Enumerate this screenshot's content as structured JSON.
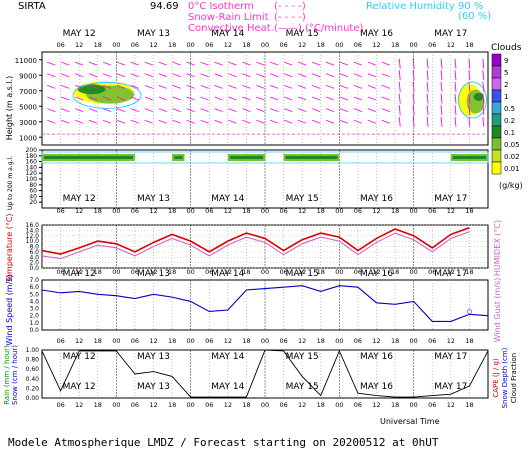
{
  "header": {
    "station": "SIRTA",
    "station_code": "94.69",
    "legend_left": [
      {
        "label": "0°C Isotherm",
        "sample": "(- - - -)"
      },
      {
        "label": "Snow-Rain Limit",
        "sample": "(- - - -)"
      },
      {
        "label": "Convective Heat.",
        "sample": "(——)  (°C/minute)"
      }
    ],
    "legend_right": [
      {
        "label": "Relative Humidity",
        "value": "90 %"
      },
      {
        "label": "",
        "value": "(60 %)"
      }
    ]
  },
  "days": [
    "MAY 12",
    "MAY 13",
    "MAY 14",
    "MAY 15",
    "MAY 16",
    "MAY 17"
  ],
  "hours": [
    "06",
    "12",
    "18",
    "00"
  ],
  "footer": {
    "caption": "Modele Atmospherique LMDZ / Forecast starting on 20200512 at 0hUT",
    "universal_time": "Universal Time"
  },
  "chart_data": [
    {
      "type": "heatmap",
      "panel": "clouds",
      "title": "Clouds",
      "ylabel": "Height (m a.s.l.)",
      "yticks": [
        1000,
        3000,
        5000,
        7000,
        9000,
        11000
      ],
      "colorbar": {
        "title": "Clouds",
        "unit": "(g/kg)",
        "labels": [
          "9",
          "5",
          "2",
          "1",
          "0.5",
          "0.2",
          "0.1",
          "0.05",
          "0.02",
          "0.01"
        ],
        "colors": [
          "#9900cc",
          "#b23ad9",
          "#cc66ee",
          "#3355ee",
          "#3aa6dd",
          "#1f9f77",
          "#1c8a1c",
          "#7cbf2e",
          "#c5de2a",
          "#ffff00"
        ]
      }
    },
    {
      "type": "heatmap",
      "panel": "low-levels",
      "ylabel": "Up to 200 m a.g.l.",
      "yticks": [
        20,
        40,
        60,
        80,
        100,
        120,
        140,
        160,
        180,
        200
      ]
    },
    {
      "type": "line",
      "panel": "temperature",
      "ylabel": "Temperature (°C)",
      "ylabel_right": "HUMIDEX (°C)",
      "yticks": [
        "0.0",
        "2.0",
        "4.0",
        "6.0",
        "8.0",
        "10.0",
        "12.0",
        "14.0",
        "16.0"
      ],
      "ylim": [
        0,
        16
      ],
      "x_hours": [
        0,
        6,
        12,
        18,
        24,
        30,
        36,
        42,
        48,
        54,
        60,
        66,
        72,
        78,
        84,
        90,
        96,
        102,
        108,
        114,
        120,
        126,
        132,
        138
      ],
      "series": [
        {
          "name": "Temperature",
          "color": "#dd0000",
          "values": [
            6.5,
            5.2,
            7.5,
            10.0,
            9.0,
            6.0,
            9.5,
            12.5,
            10.0,
            6.0,
            10.0,
            13.0,
            11.0,
            6.5,
            10.5,
            13.0,
            11.5,
            6.5,
            11.0,
            14.5,
            12.0,
            7.5,
            12.5,
            15.0
          ]
        },
        {
          "name": "HUMIDEX",
          "color": "#cc66cc",
          "values": [
            4.5,
            3.5,
            6.0,
            8.5,
            7.5,
            4.5,
            8.0,
            11.0,
            8.5,
            4.5,
            8.5,
            11.5,
            9.5,
            5.0,
            9.0,
            11.5,
            10.0,
            5.0,
            9.5,
            13.0,
            10.5,
            6.0,
            11.0,
            13.5
          ]
        }
      ]
    },
    {
      "type": "line",
      "panel": "wind",
      "ylabel": "Wind Speed (m/s)",
      "ylabel_right": "Wind Gust (m/s)",
      "yticks": [
        "0.0",
        "1.0",
        "2.0",
        "3.0",
        "4.0",
        "5.0",
        "6.0",
        "7.0"
      ],
      "ylim": [
        0,
        7
      ],
      "x_hours": [
        0,
        6,
        12,
        18,
        24,
        30,
        36,
        42,
        48,
        54,
        60,
        66,
        72,
        78,
        84,
        90,
        96,
        102,
        108,
        114,
        120,
        126,
        132,
        138,
        144
      ],
      "series": [
        {
          "name": "Wind Speed",
          "color": "#0000cc",
          "values": [
            5.6,
            5.2,
            5.4,
            5.0,
            4.8,
            4.4,
            5.0,
            4.6,
            4.0,
            2.6,
            2.8,
            5.6,
            5.8,
            6.0,
            6.2,
            5.4,
            6.2,
            6.0,
            3.8,
            3.6,
            4.0,
            1.2,
            1.2,
            2.2,
            2.0
          ]
        },
        {
          "name": "Wind Gust",
          "color": "#cc66cc",
          "values": [
            null,
            null,
            null,
            null,
            null,
            null,
            null,
            null,
            null,
            null,
            null,
            null,
            null,
            null,
            null,
            null,
            null,
            null,
            null,
            null,
            null,
            null,
            null,
            2.6,
            null
          ]
        }
      ]
    },
    {
      "type": "line",
      "panel": "precipitation",
      "ylabel": "Rain (mm / hour)",
      "ylabel2": "Snow (cm / hour)",
      "ylabel_right": "CAPE (J / g)",
      "ylabel_right2": "Snow Depth (cm)",
      "ylabel_right3": "Cloud Fraction",
      "yticks": [
        "0.00",
        "0.20",
        "0.40",
        "0.60",
        "0.80",
        "1.00"
      ],
      "ylim": [
        0,
        1
      ],
      "x_hours": [
        0,
        6,
        12,
        18,
        24,
        30,
        36,
        42,
        48,
        54,
        60,
        66,
        72,
        78,
        84,
        90,
        96,
        102,
        108,
        114,
        120,
        126,
        132,
        138,
        144
      ],
      "series": [
        {
          "name": "Cloud Fraction",
          "color": "#000000",
          "values": [
            0.98,
            0.15,
            0.98,
            0.98,
            0.98,
            0.5,
            0.55,
            0.45,
            0.02,
            0.02,
            0.02,
            0.02,
            1.0,
            0.98,
            0.45,
            0.05,
            0.98,
            0.1,
            0.05,
            0.02,
            0.02,
            0.05,
            0.08,
            0.25,
            0.98
          ]
        }
      ]
    }
  ]
}
